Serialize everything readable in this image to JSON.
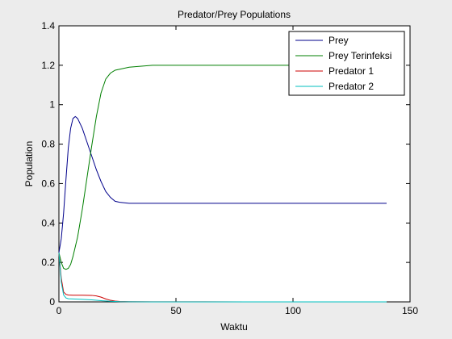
{
  "chart_data": {
    "type": "line",
    "title": "Predator/Prey Populations",
    "xlabel": "Waktu",
    "ylabel": "Population",
    "xlim": [
      0,
      150
    ],
    "ylim": [
      0,
      1.4
    ],
    "xticks": [
      "0",
      "50",
      "100",
      "150"
    ],
    "yticks": [
      "0",
      "0.2",
      "0.4",
      "0.6",
      "0.8",
      "1",
      "1.2",
      "1.4"
    ],
    "grid": false,
    "legend_position": "top-right",
    "series": [
      {
        "name": "Prey",
        "color": "#00008b",
        "x": [
          0,
          1,
          2,
          3,
          4,
          5,
          6,
          7,
          8,
          10,
          12,
          14,
          16,
          18,
          20,
          22,
          24,
          26,
          30,
          40,
          60,
          80,
          100,
          120,
          140
        ],
        "y": [
          0.25,
          0.32,
          0.45,
          0.62,
          0.78,
          0.88,
          0.93,
          0.94,
          0.93,
          0.88,
          0.81,
          0.74,
          0.67,
          0.61,
          0.56,
          0.53,
          0.51,
          0.505,
          0.5,
          0.5,
          0.5,
          0.5,
          0.5,
          0.5,
          0.5
        ]
      },
      {
        "name": "Prey Terinfeksi",
        "color": "#007f00",
        "x": [
          0,
          1,
          2,
          3,
          4,
          5,
          6,
          8,
          10,
          12,
          14,
          16,
          18,
          20,
          22,
          24,
          26,
          30,
          40,
          60,
          80,
          100,
          120,
          140
        ],
        "y": [
          0.25,
          0.2,
          0.17,
          0.165,
          0.17,
          0.19,
          0.23,
          0.33,
          0.47,
          0.63,
          0.79,
          0.94,
          1.06,
          1.13,
          1.16,
          1.175,
          1.18,
          1.19,
          1.2,
          1.2,
          1.2,
          1.2,
          1.2,
          1.2
        ]
      },
      {
        "name": "Predator 1",
        "color": "#cc0000",
        "x": [
          0,
          1,
          2,
          3,
          4,
          6,
          10,
          14,
          16,
          18,
          20,
          22,
          24,
          26,
          30,
          40,
          60,
          80,
          100,
          120,
          140
        ],
        "y": [
          0.25,
          0.12,
          0.05,
          0.038,
          0.035,
          0.034,
          0.034,
          0.033,
          0.03,
          0.024,
          0.015,
          0.008,
          0.004,
          0.002,
          0.001,
          0.0005,
          0.0003,
          0.0002,
          0.0002,
          0.0002,
          0.0002
        ]
      },
      {
        "name": "Predator 2",
        "color": "#00bfbf",
        "x": [
          0,
          1,
          2,
          3,
          4,
          6,
          10,
          14,
          18,
          22,
          26,
          30,
          40,
          60,
          80,
          100,
          120,
          140
        ],
        "y": [
          0.25,
          0.1,
          0.035,
          0.02,
          0.016,
          0.015,
          0.013,
          0.01,
          0.006,
          0.003,
          0.001,
          0.0005,
          0.0002,
          0.0001,
          0.0001,
          0.0001,
          0.0001,
          0.0001
        ]
      }
    ]
  }
}
